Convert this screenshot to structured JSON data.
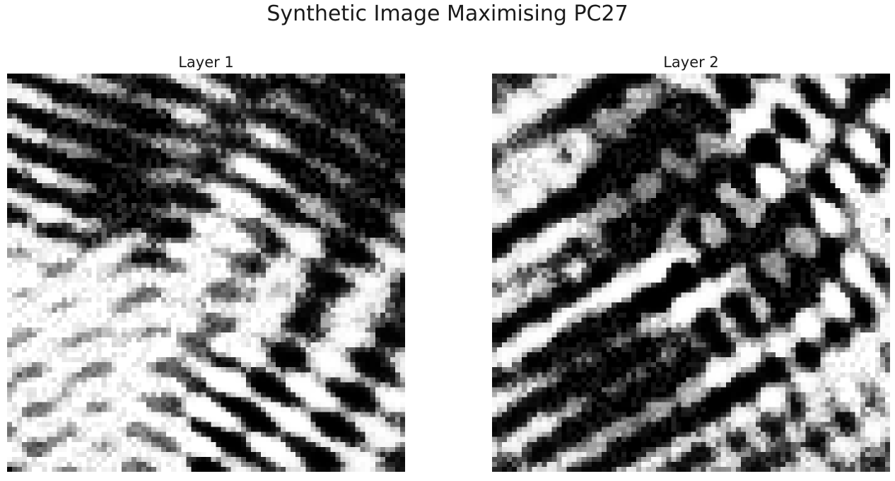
{
  "figure": {
    "title": "Synthetic Image Maximising PC27"
  },
  "panels": [
    {
      "title": "Layer 1",
      "colormap": "gray",
      "seed": 271
    },
    {
      "title": "Layer 2",
      "colormap": "gray",
      "seed": 927
    }
  ],
  "colors": {
    "background": "#ffffff",
    "text": "#1a1a1a",
    "ink": "#000000"
  }
}
